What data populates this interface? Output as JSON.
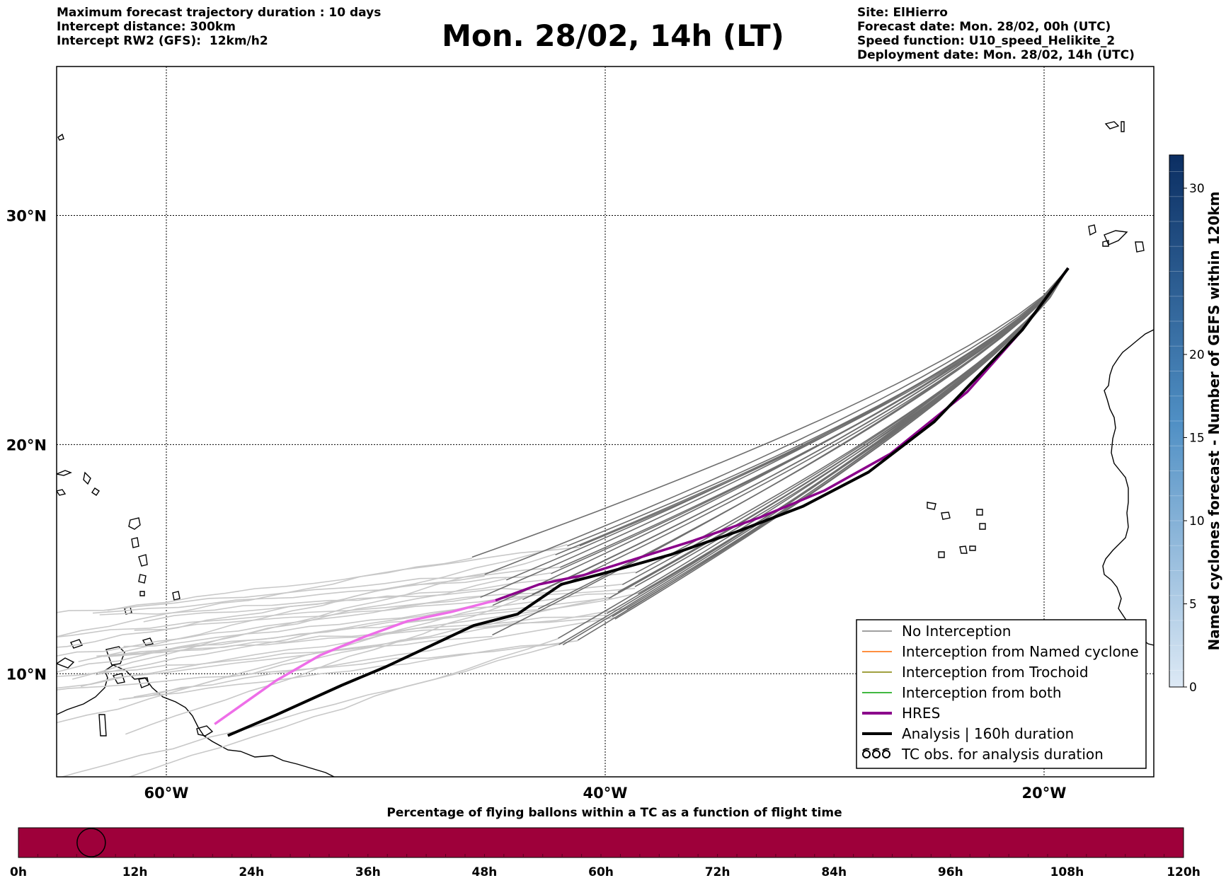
{
  "header": {
    "left_lines": [
      "Maximum forecast trajectory duration : 10 days",
      "Intercept distance: 300km",
      "Intercept RW2 (GFS):  12km/h2"
    ],
    "title": "Mon. 28/02, 14h (LT)",
    "right_lines": [
      "Site: ElHierro",
      "Forecast date: Mon. 28/02, 00h (UTC)",
      "Speed function: U10_speed_Helikite_2",
      "Deployment date: Mon. 28/02, 14h (UTC)"
    ]
  },
  "map": {
    "lon_range": [
      -65,
      -15
    ],
    "lat_range": [
      5.5,
      36.5
    ],
    "lon_ticks": [
      {
        "value": -60,
        "label": "60°W"
      },
      {
        "value": -40,
        "label": "40°W"
      },
      {
        "value": -20,
        "label": "20°W"
      }
    ],
    "lat_ticks": [
      {
        "value": 30,
        "label": "30°N"
      },
      {
        "value": 20,
        "label": "20°N"
      },
      {
        "value": 10,
        "label": "10°N"
      }
    ],
    "site": {
      "name": "ElHierro",
      "lon": -18.9,
      "lat": 27.7
    },
    "colors": {
      "no_interception": "#808080",
      "no_interception_late": "#c8c8c8",
      "named_cyclone": "#ff6a00",
      "trochoid": "#808000",
      "both": "#00a000",
      "hres": "#8b008b",
      "hres_late": "#ee6ee8",
      "analysis": "#000000"
    }
  },
  "chart_data": {
    "type": "line",
    "xlabel": "",
    "ylabel": "",
    "series": [
      {
        "name": "HRES",
        "lon": [
          -18.9,
          -21,
          -23.5,
          -27,
          -30,
          -33,
          -36,
          -39,
          -41,
          -43,
          -45,
          -47,
          -49,
          -51,
          -53,
          -55,
          -57.8
        ],
        "lat": [
          27.7,
          25.0,
          22.3,
          19.6,
          18.0,
          16.8,
          15.8,
          14.9,
          14.3,
          13.9,
          13.2,
          12.7,
          12.3,
          11.6,
          10.8,
          9.7,
          7.8
        ]
      },
      {
        "name": "Analysis | 160h duration",
        "lon": [
          -18.9,
          -21,
          -22.5,
          -25,
          -28,
          -31,
          -34,
          -37,
          -40,
          -42,
          -44,
          -46,
          -48,
          -50,
          -52,
          -55,
          -57.2
        ],
        "lat": [
          27.7,
          25.0,
          23.5,
          21.0,
          18.8,
          17.3,
          16.2,
          15.2,
          14.4,
          13.9,
          12.6,
          12.1,
          11.2,
          10.3,
          9.5,
          8.2,
          7.3
        ]
      }
    ],
    "colorbar": {
      "label": "Named cyclones forecast - Number of GEFS within 120km",
      "min": 0,
      "max": 32,
      "ticks": [
        0,
        5,
        10,
        15,
        20,
        30
      ],
      "color_low": "#dde9f5",
      "color_high": "#0b2e62"
    },
    "timeline": {
      "title": "Percentage of flying ballons within a TC as a function of flight time",
      "ticks": [
        "0h",
        "12h",
        "24h",
        "36h",
        "48h",
        "60h",
        "72h",
        "84h",
        "96h",
        "108h",
        "120h"
      ],
      "bar_color": "#9e003a",
      "marker_hour": 7.5,
      "max_hours": 120
    }
  },
  "legend": {
    "items": [
      {
        "label": "No Interception",
        "kind": "line",
        "color": "#808080",
        "width": 1.5
      },
      {
        "label": "Interception from Named cyclone",
        "kind": "line",
        "color": "#ff6a00",
        "width": 1.5
      },
      {
        "label": "Interception from Trochoid",
        "kind": "line",
        "color": "#808000",
        "width": 1.5
      },
      {
        "label": "Interception from both",
        "kind": "line",
        "color": "#00a000",
        "width": 1.5
      },
      {
        "label": "HRES",
        "kind": "line",
        "color": "#8b008b",
        "width": 4
      },
      {
        "label": "Analysis | 160h duration",
        "kind": "line",
        "color": "#000000",
        "width": 4
      },
      {
        "label": "TC obs. for analysis duration",
        "kind": "tc-symbol",
        "color": "#000000",
        "width": 2
      }
    ]
  }
}
